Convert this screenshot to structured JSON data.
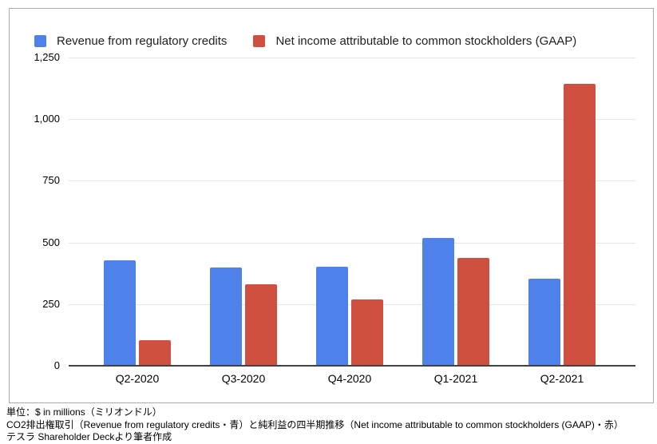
{
  "chart_data": {
    "type": "bar",
    "title": "",
    "categories": [
      "Q2-2020",
      "Q3-2020",
      "Q4-2020",
      "Q1-2021",
      "Q2-2021"
    ],
    "series": [
      {
        "name": "Revenue from regulatory credits",
        "key": "revenue-regulatory-credits",
        "color": "#4e81e9",
        "values": [
          428,
          397,
          401,
          518,
          354
        ]
      },
      {
        "name": "Net income attributable to common stockholders (GAAP)",
        "key": "net-income-gaap",
        "color": "#d0503f",
        "values": [
          104,
          331,
          270,
          438,
          1142
        ]
      }
    ],
    "xlabel": "",
    "ylabel": "",
    "ylim": [
      0,
      1250
    ],
    "yticks": [
      0,
      250,
      500,
      750,
      1000,
      1250
    ],
    "ytick_labels": [
      "0",
      "250",
      "500",
      "750",
      "1,000",
      "1,250"
    ],
    "grid": true,
    "legend_position": "top"
  },
  "legend": {
    "items": [
      {
        "label": "Revenue from regulatory credits",
        "color": "#4e81e9"
      },
      {
        "label": "Net income attributable to common stockholders (GAAP)",
        "color": "#d0503f"
      }
    ]
  },
  "footnotes": {
    "lines": [
      "単位：$ in millions（ミリオンドル）",
      "CO2排出権取引（Revenue from regulatory credits・青）と純利益の四半期推移（Net income attributable to common stockholders (GAAP)・赤）",
      "テスラ Shareholder Deckより筆者作成"
    ]
  }
}
